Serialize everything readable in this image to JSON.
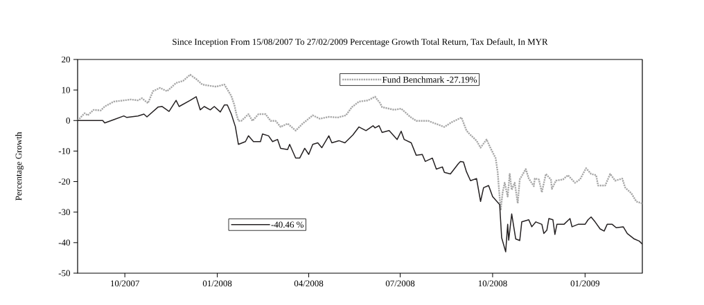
{
  "chart_data": {
    "type": "line",
    "title": "Since Inception From 15/08/2007 To 27/02/2009 Percentage Growth Total Return, Tax Default, In MYR",
    "ylabel": "Percentage Growth",
    "xlim": [
      "2007-08-15",
      "2009-02-27"
    ],
    "ylim": [
      -50,
      20
    ],
    "xticks": [
      {
        "value": "2007-10-01",
        "label": "10/2007"
      },
      {
        "value": "2008-01-01",
        "label": "01/2008"
      },
      {
        "value": "2008-04-01",
        "label": "04/2008"
      },
      {
        "value": "2008-07-01",
        "label": "07/2008"
      },
      {
        "value": "2008-10-01",
        "label": "10/2008"
      },
      {
        "value": "2009-01-01",
        "label": "01/2009"
      }
    ],
    "yticks": [
      -50,
      -40,
      -30,
      -20,
      -10,
      0,
      10,
      20
    ],
    "legend": "top left",
    "marker": "none",
    "series": [
      {
        "name": "Fund Benchmark -27.19%",
        "color": "#a6a6a6",
        "line_style": "dotted",
        "x": [
          "2007-08-15",
          "2007-08-22",
          "2007-08-25",
          "2007-08-31",
          "2007-09-07",
          "2007-09-11",
          "2007-09-20",
          "2007-09-30",
          "2007-10-07",
          "2007-10-14",
          "2007-10-18",
          "2007-10-24",
          "2007-10-29",
          "2007-11-05",
          "2007-11-12",
          "2007-11-21",
          "2007-11-28",
          "2007-12-05",
          "2007-12-11",
          "2007-12-17",
          "2007-12-24",
          "2007-12-31",
          "2008-01-08",
          "2008-01-11",
          "2008-01-15",
          "2008-01-18",
          "2008-01-20",
          "2008-01-22",
          "2008-01-25",
          "2008-02-01",
          "2008-02-05",
          "2008-02-11",
          "2008-02-18",
          "2008-02-23",
          "2008-02-28",
          "2008-03-04",
          "2008-03-11",
          "2008-03-19",
          "2008-03-26",
          "2008-04-05",
          "2008-04-12",
          "2008-04-21",
          "2008-04-30",
          "2008-05-08",
          "2008-05-14",
          "2008-05-21",
          "2008-05-30",
          "2008-06-06",
          "2008-06-11",
          "2008-06-13",
          "2008-06-25",
          "2008-07-02",
          "2008-07-11",
          "2008-07-17",
          "2008-07-29",
          "2008-08-05",
          "2008-08-14",
          "2008-08-21",
          "2008-08-31",
          "2008-09-05",
          "2008-09-08",
          "2008-09-15",
          "2008-09-19",
          "2008-09-25",
          "2008-09-29",
          "2008-10-04",
          "2008-10-06",
          "2008-10-09",
          "2008-10-11",
          "2008-10-13",
          "2008-10-16",
          "2008-10-18",
          "2008-10-20",
          "2008-10-23",
          "2008-10-26",
          "2008-10-28",
          "2008-11-03",
          "2008-11-06",
          "2008-11-11",
          "2008-11-12",
          "2008-11-16",
          "2008-11-19",
          "2008-11-23",
          "2008-11-28",
          "2008-11-29",
          "2008-12-03",
          "2008-12-10",
          "2008-12-15",
          "2008-12-22",
          "2008-12-27",
          "2009-01-02",
          "2009-01-07",
          "2009-01-12",
          "2009-01-14",
          "2009-01-21",
          "2009-01-26",
          "2009-01-31",
          "2009-02-07",
          "2009-02-10",
          "2009-02-16",
          "2009-02-21",
          "2009-02-27"
        ],
        "values": [
          0,
          2.4,
          1.7,
          3.5,
          3.3,
          4.6,
          6.2,
          6.6,
          6.9,
          6.6,
          7.3,
          5.7,
          9.6,
          10.7,
          9.6,
          12.3,
          13,
          15,
          13.6,
          11.8,
          11.4,
          11.1,
          11.8,
          10.2,
          8,
          5.1,
          2.1,
          -0.1,
          -0.1,
          2.1,
          -0.1,
          2.1,
          2.1,
          -0.1,
          -0.1,
          -2.1,
          -1,
          -3.3,
          -1,
          1.7,
          0.6,
          1.2,
          1,
          1.7,
          4.4,
          6.2,
          6.6,
          7.8,
          5.7,
          4.4,
          3.5,
          3.9,
          1.2,
          -0.1,
          -0.1,
          -1,
          -2.1,
          -0.6,
          1,
          -3.3,
          -4.4,
          -6.6,
          -8.9,
          -6.2,
          -9.1,
          -12.3,
          -16.8,
          -29.4,
          -23.5,
          -20.4,
          -24.9,
          -17.5,
          -22.7,
          -20.4,
          -27.1,
          -19.3,
          -15.9,
          -19,
          -21.5,
          -19,
          -19.3,
          -23.5,
          -17.5,
          -19.3,
          -22.4,
          -19.7,
          -19.3,
          -17.9,
          -20.4,
          -19.3,
          -15.6,
          -17.5,
          -17.9,
          -21.3,
          -21.3,
          -17.5,
          -19.7,
          -19,
          -22,
          -23.8,
          -26.5,
          -27.2
        ]
      },
      {
        "name": "-40.46 %",
        "color": "#231f20",
        "line_style": "solid",
        "x": [
          "2007-08-15",
          "2007-09-09",
          "2007-09-11",
          "2007-09-20",
          "2007-09-30",
          "2007-10-03",
          "2007-10-14",
          "2007-10-20",
          "2007-10-23",
          "2007-11-03",
          "2007-11-07",
          "2007-11-14",
          "2007-11-21",
          "2007-11-24",
          "2007-12-05",
          "2007-12-11",
          "2007-12-15",
          "2007-12-19",
          "2007-12-25",
          "2007-12-29",
          "2008-01-04",
          "2008-01-08",
          "2008-01-11",
          "2008-01-15",
          "2008-01-19",
          "2008-01-22",
          "2008-01-29",
          "2008-02-01",
          "2008-02-06",
          "2008-02-13",
          "2008-02-15",
          "2008-02-21",
          "2008-02-25",
          "2008-03-01",
          "2008-03-04",
          "2008-03-11",
          "2008-03-13",
          "2008-03-19",
          "2008-03-23",
          "2008-03-28",
          "2008-04-01",
          "2008-04-05",
          "2008-04-10",
          "2008-04-14",
          "2008-04-21",
          "2008-04-24",
          "2008-05-01",
          "2008-05-07",
          "2008-05-15",
          "2008-05-21",
          "2008-05-28",
          "2008-06-04",
          "2008-06-06",
          "2008-06-10",
          "2008-06-13",
          "2008-06-20",
          "2008-06-28",
          "2008-07-02",
          "2008-07-05",
          "2008-07-12",
          "2008-07-17",
          "2008-07-23",
          "2008-07-26",
          "2008-08-02",
          "2008-08-06",
          "2008-08-12",
          "2008-08-14",
          "2008-08-20",
          "2008-08-28",
          "2008-08-30",
          "2008-09-02",
          "2008-09-05",
          "2008-09-09",
          "2008-09-15",
          "2008-09-19",
          "2008-09-22",
          "2008-09-27",
          "2008-10-01",
          "2008-10-08",
          "2008-10-10",
          "2008-10-14",
          "2008-10-16",
          "2008-10-17",
          "2008-10-20",
          "2008-10-24",
          "2008-10-28",
          "2008-10-30",
          "2008-11-06",
          "2008-11-09",
          "2008-11-13",
          "2008-11-19",
          "2008-11-21",
          "2008-11-24",
          "2008-11-26",
          "2008-11-30",
          "2008-12-02",
          "2008-12-04",
          "2008-12-11",
          "2008-12-17",
          "2008-12-19",
          "2008-12-25",
          "2009-01-01",
          "2009-01-04",
          "2009-01-07",
          "2009-01-11",
          "2009-01-16",
          "2009-01-20",
          "2009-01-23",
          "2009-01-28",
          "2009-02-01",
          "2009-02-08",
          "2009-02-12",
          "2009-02-19",
          "2009-02-24",
          "2009-02-27"
        ],
        "values": [
          0,
          0,
          -0.8,
          0.3,
          1.5,
          1,
          1.5,
          2.1,
          1.2,
          4.4,
          4.6,
          3,
          6.6,
          4.6,
          6.6,
          7.8,
          3.5,
          4.6,
          3.5,
          4.6,
          2.8,
          5.1,
          5.1,
          2.1,
          -2,
          -7.8,
          -6.9,
          -5,
          -6.9,
          -6.9,
          -4.4,
          -5,
          -6.9,
          -6.2,
          -9.1,
          -9.5,
          -7.8,
          -12.3,
          -12.3,
          -9.1,
          -11.1,
          -7.8,
          -7.3,
          -8.9,
          -5,
          -7.3,
          -6.6,
          -7.3,
          -4.7,
          -2.1,
          -3.3,
          -1.7,
          -2.4,
          -1.7,
          -3.9,
          -3.3,
          -6.2,
          -3.5,
          -6.2,
          -7.3,
          -11.4,
          -11.1,
          -13.4,
          -12.3,
          -15.9,
          -15.2,
          -17,
          -17.5,
          -14.1,
          -13.4,
          -13.6,
          -16.8,
          -19.7,
          -19,
          -26.5,
          -22,
          -21.3,
          -24.9,
          -27.5,
          -38.4,
          -43,
          -34,
          -39.2,
          -30.6,
          -38.8,
          -39.3,
          -33.2,
          -32.5,
          -34.8,
          -33.2,
          -34,
          -37,
          -35.9,
          -32.1,
          -32.5,
          -37.3,
          -34,
          -34,
          -32.1,
          -34.8,
          -34,
          -34,
          -32.5,
          -31.6,
          -33.2,
          -35.5,
          -36.2,
          -34,
          -34,
          -35.1,
          -34.8,
          -37,
          -38.8,
          -39.5,
          -40.5
        ]
      }
    ]
  }
}
